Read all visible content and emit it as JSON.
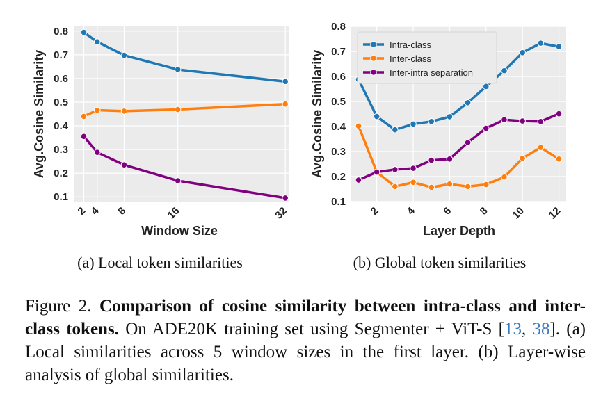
{
  "colors": {
    "intra": "#1f77b4",
    "inter": "#ff7f0e",
    "sep": "#800080",
    "plot_bg": "#ebebeb",
    "grid": "#ffffff",
    "ref": "#3a7bbf"
  },
  "chart_data": [
    {
      "type": "line",
      "xlabel": "Window Size",
      "ylabel": "Avg.Cosine Similarity",
      "x": [
        2,
        4,
        8,
        16,
        32
      ],
      "xticks": [
        "2",
        "4",
        "8",
        "16",
        "32"
      ],
      "xlim": [
        0.5,
        32.5
      ],
      "ylim": [
        0.08,
        0.82
      ],
      "yticks": [
        "0.8",
        "0.7",
        "0.6",
        "0.5",
        "0.4",
        "0.3",
        "0.2",
        "0.1"
      ],
      "grid": true,
      "series": [
        {
          "key": "intra",
          "values": [
            0.795,
            0.755,
            0.698,
            0.638,
            0.587
          ]
        },
        {
          "key": "inter",
          "values": [
            0.44,
            0.466,
            0.462,
            0.469,
            0.492
          ]
        },
        {
          "key": "sep",
          "values": [
            0.355,
            0.288,
            0.235,
            0.168,
            0.095
          ]
        }
      ],
      "caption": "(a) Local token similarities"
    },
    {
      "type": "line",
      "xlabel": "Layer Depth",
      "ylabel": "Avg.Cosine Similarity",
      "x": [
        1,
        2,
        3,
        4,
        5,
        6,
        7,
        8,
        9,
        10,
        11,
        12
      ],
      "xticks": [
        "2",
        "4",
        "6",
        "8",
        "10",
        "12"
      ],
      "xlim": [
        0.6,
        12.4
      ],
      "ylim": [
        0.1,
        0.8
      ],
      "yticks": [
        "0.8",
        "0.7",
        "0.6",
        "0.5",
        "0.4",
        "0.3",
        "0.2",
        "0.1"
      ],
      "grid": true,
      "legend": "top-left",
      "series": [
        {
          "key": "intra",
          "name": "Intra-class",
          "values": [
            0.588,
            0.44,
            0.387,
            0.41,
            0.42,
            0.439,
            0.495,
            0.56,
            0.623,
            0.695,
            0.733,
            0.719
          ]
        },
        {
          "key": "inter",
          "name": "Inter-class",
          "values": [
            0.402,
            0.218,
            0.16,
            0.177,
            0.157,
            0.17,
            0.16,
            0.168,
            0.198,
            0.273,
            0.316,
            0.27
          ]
        },
        {
          "key": "sep",
          "name": "Inter-intra separation",
          "values": [
            0.186,
            0.218,
            0.228,
            0.233,
            0.265,
            0.27,
            0.336,
            0.393,
            0.427,
            0.422,
            0.42,
            0.451
          ]
        }
      ],
      "caption": "(b) Global token similarities"
    }
  ],
  "figure_caption": {
    "label": "Figure 2.",
    "title": "Comparison of cosine similarity between intra-class and inter-class tokens.",
    "text1": "On ADE20K training set using Segmenter + ViT-S [",
    "ref1": "13",
    "sep": ", ",
    "ref2": "38",
    "text2": "]. (a) Local similarities across 5 window sizes in the first layer. (b) Layer-wise analysis of global similarities."
  }
}
